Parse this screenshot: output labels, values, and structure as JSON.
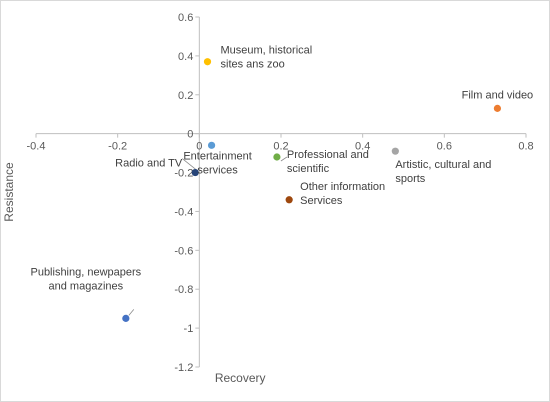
{
  "chart_data": {
    "type": "scatter",
    "xlabel": "Recovery",
    "ylabel": "Resistance",
    "xlim": [
      -0.4,
      0.8
    ],
    "ylim": [
      -1.2,
      0.6
    ],
    "x_ticks": [
      "-0.4",
      "-0.2",
      "0",
      "0.2",
      "0.4",
      "0.6",
      "0.8"
    ],
    "y_ticks": [
      "0.6",
      "0.4",
      "0.2",
      "0",
      "-0.2",
      "-0.4",
      "-0.6",
      "-0.8",
      "-1",
      "-1.2"
    ],
    "grid": false,
    "legend": "none",
    "points": [
      {
        "label": [
          "Museum, historical",
          "sites ans zoo"
        ],
        "x": 0.02,
        "y": 0.37,
        "color": "#ffc000"
      },
      {
        "label": [
          "Film and video"
        ],
        "x": 0.73,
        "y": 0.13,
        "color": "#ed7d31"
      },
      {
        "label": [
          "Entertainment",
          "services"
        ],
        "x": 0.03,
        "y": -0.06,
        "color": "#5b9bd5"
      },
      {
        "label": [
          "Professional and",
          "scientific"
        ],
        "x": 0.19,
        "y": -0.12,
        "color": "#70ad47"
      },
      {
        "label": [
          "Artistic, cultural and",
          "sports"
        ],
        "x": 0.48,
        "y": -0.09,
        "color": "#a5a5a5"
      },
      {
        "label": [
          "Radio and TV"
        ],
        "x": -0.01,
        "y": -0.2,
        "color": "#264478"
      },
      {
        "label": [
          "Other information",
          "Services"
        ],
        "x": 0.22,
        "y": -0.34,
        "color": "#9e480e"
      },
      {
        "label": [
          "Publishing, newpapers",
          "and magazines"
        ],
        "x": -0.18,
        "y": -0.95,
        "color": "#4472c4"
      }
    ]
  }
}
